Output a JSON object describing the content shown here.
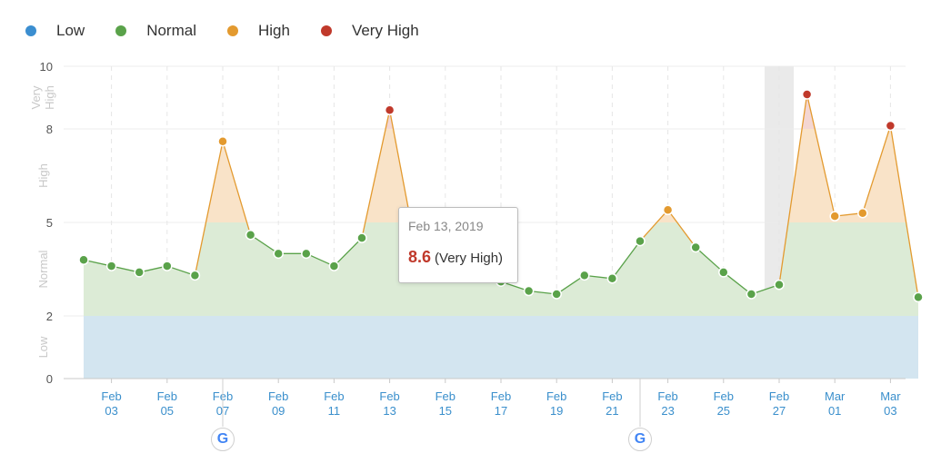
{
  "legend": [
    {
      "label": "Low",
      "color": "#3b8ed0"
    },
    {
      "label": "Normal",
      "color": "#5aa24a"
    },
    {
      "label": "High",
      "color": "#e39a2f"
    },
    {
      "label": "Very High",
      "color": "#c0392b"
    }
  ],
  "tooltip": {
    "date": "Feb 13, 2019",
    "value": "8.6",
    "category": "(Very High)"
  },
  "google_update_icon": "G",
  "chart_data": {
    "type": "area",
    "ylim": [
      0,
      10
    ],
    "yticks": [
      "0",
      "2",
      "5",
      "8",
      "10"
    ],
    "bands": [
      {
        "name": "Low",
        "from": 0,
        "to": 2,
        "color": "#d3e5f0"
      },
      {
        "name": "Normal",
        "from": 2,
        "to": 5,
        "color": "#dcebd6"
      },
      {
        "name": "High",
        "from": 5,
        "to": 8,
        "color": "#f9e3c8"
      },
      {
        "name": "Very High",
        "from": 8,
        "to": 10,
        "color": "#f4d6d2"
      }
    ],
    "band_labels": [
      "Low",
      "Normal",
      "High",
      "Very High"
    ],
    "x_tick_labels": [
      [
        "Feb",
        "03"
      ],
      [
        "Feb",
        "05"
      ],
      [
        "Feb",
        "07"
      ],
      [
        "Feb",
        "09"
      ],
      [
        "Feb",
        "11"
      ],
      [
        "Feb",
        "13"
      ],
      [
        "Feb",
        "15"
      ],
      [
        "Feb",
        "17"
      ],
      [
        "Feb",
        "19"
      ],
      [
        "Feb",
        "21"
      ],
      [
        "Feb",
        "23"
      ],
      [
        "Feb",
        "25"
      ],
      [
        "Feb",
        "27"
      ],
      [
        "Mar",
        "01"
      ],
      [
        "Mar",
        "03"
      ]
    ],
    "x_tick_day_index": [
      1,
      3,
      5,
      7,
      9,
      11,
      13,
      15,
      17,
      19,
      21,
      23,
      25,
      27,
      29
    ],
    "google_update_day_index": [
      5,
      20
    ],
    "highlight_day_index": 25,
    "values": [
      3.8,
      3.6,
      3.4,
      3.6,
      3.3,
      7.6,
      4.6,
      4.0,
      4.0,
      3.6,
      4.5,
      8.6,
      3.9,
      3.6,
      3.4,
      3.1,
      2.8,
      2.7,
      3.3,
      3.2,
      4.4,
      5.4,
      4.2,
      3.4,
      2.7,
      3.0,
      9.1,
      5.2,
      5.3,
      8.1,
      2.6
    ],
    "thresholds": {
      "low": 2,
      "normal": 5,
      "high": 8
    },
    "colors": {
      "low": "#3b8ed0",
      "normal": "#5aa24a",
      "high": "#e39a2f",
      "very_high": "#c0392b"
    }
  }
}
